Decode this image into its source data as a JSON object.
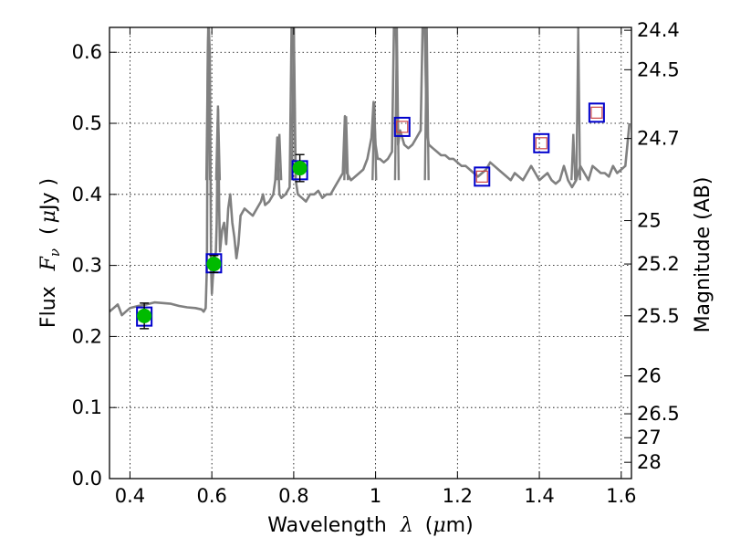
{
  "chart_data": {
    "type": "line",
    "xlabel": {
      "prefix": "Wavelength",
      "symbol": "λ",
      "unit_open": "(",
      "unit_mu": "μ",
      "unit_rest": "m)"
    },
    "ylabel": {
      "prefix": "Flux",
      "symbol": "F",
      "subscript": "ν",
      "unit_open": "(",
      "unit_mu": "μ",
      "unit_rest": "Jy )"
    },
    "y2label": "Magnitude (AB)",
    "xlim": [
      0.35,
      1.625
    ],
    "ylim": [
      0.0,
      0.635
    ],
    "x_ticks": [
      0.4,
      0.6,
      0.8,
      1.0,
      1.2,
      1.4,
      1.6
    ],
    "x_tick_labels": [
      "0.4",
      "0.6",
      "0.8",
      "1",
      "1.2",
      "1.4",
      "1.6"
    ],
    "y_ticks": [
      0.0,
      0.1,
      0.2,
      0.3,
      0.4,
      0.5,
      0.6
    ],
    "y_tick_labels": [
      "0.0",
      "0.1",
      "0.2",
      "0.3",
      "0.4",
      "0.5",
      "0.6"
    ],
    "y2_ticks_mag": [
      24.4,
      24.5,
      24.7,
      25,
      25.2,
      25.5,
      26,
      26.5,
      27,
      28
    ],
    "y2_tick_labels": [
      "24.4",
      "24.5",
      "24.7",
      "25",
      "25.2",
      "25.5",
      "26",
      "26.5",
      "27",
      "28"
    ],
    "grid": true,
    "colors": {
      "spectrum": "#808080",
      "model_box": "#0000cc",
      "observed": "#00bb00",
      "upper_limit": "#cc4444",
      "errorbar": "#000000"
    },
    "spectrum": {
      "x": [
        0.35,
        0.36,
        0.37,
        0.375,
        0.38,
        0.39,
        0.4,
        0.42,
        0.44,
        0.46,
        0.48,
        0.5,
        0.52,
        0.54,
        0.56,
        0.575,
        0.58,
        0.585,
        0.588,
        0.59,
        0.592,
        0.595,
        0.598,
        0.6,
        0.602,
        0.605,
        0.61,
        0.612,
        0.615,
        0.618,
        0.62,
        0.625,
        0.63,
        0.635,
        0.64,
        0.645,
        0.65,
        0.655,
        0.66,
        0.665,
        0.67,
        0.68,
        0.69,
        0.7,
        0.71,
        0.72,
        0.725,
        0.73,
        0.74,
        0.75,
        0.755,
        0.76,
        0.765,
        0.77,
        0.78,
        0.79,
        0.795,
        0.8,
        0.805,
        0.81,
        0.82,
        0.83,
        0.84,
        0.85,
        0.86,
        0.87,
        0.88,
        0.89,
        0.9,
        0.91,
        0.92,
        0.925,
        0.93,
        0.94,
        0.95,
        0.96,
        0.97,
        0.98,
        0.99,
        0.995,
        1.0,
        1.005,
        1.01,
        1.02,
        1.03,
        1.04,
        1.045,
        1.05,
        1.055,
        1.06,
        1.07,
        1.08,
        1.09,
        1.1,
        1.11,
        1.115,
        1.12,
        1.125,
        1.13,
        1.14,
        1.15,
        1.16,
        1.17,
        1.18,
        1.19,
        1.2,
        1.21,
        1.22,
        1.23,
        1.24,
        1.25,
        1.26,
        1.27,
        1.28,
        1.29,
        1.3,
        1.31,
        1.32,
        1.33,
        1.34,
        1.35,
        1.36,
        1.37,
        1.38,
        1.39,
        1.4,
        1.41,
        1.42,
        1.43,
        1.44,
        1.45,
        1.46,
        1.47,
        1.48,
        1.49,
        1.5,
        1.51,
        1.52,
        1.53,
        1.54,
        1.55,
        1.56,
        1.57,
        1.58,
        1.59,
        1.6,
        1.61,
        1.62
      ],
      "y": [
        0.235,
        0.24,
        0.245,
        0.238,
        0.23,
        0.235,
        0.24,
        0.243,
        0.245,
        0.248,
        0.247,
        0.246,
        0.243,
        0.241,
        0.24,
        0.238,
        0.235,
        0.24,
        0.3,
        0.6,
        0.64,
        0.6,
        0.3,
        0.26,
        0.28,
        0.3,
        0.32,
        0.36,
        0.52,
        0.38,
        0.32,
        0.35,
        0.36,
        0.33,
        0.38,
        0.4,
        0.36,
        0.34,
        0.31,
        0.33,
        0.37,
        0.38,
        0.375,
        0.37,
        0.38,
        0.39,
        0.4,
        0.385,
        0.39,
        0.4,
        0.42,
        0.48,
        0.4,
        0.395,
        0.4,
        0.41,
        0.64,
        0.64,
        0.42,
        0.4,
        0.395,
        0.39,
        0.4,
        0.4,
        0.405,
        0.395,
        0.4,
        0.4,
        0.41,
        0.42,
        0.43,
        0.51,
        0.43,
        0.42,
        0.425,
        0.43,
        0.435,
        0.45,
        0.48,
        0.53,
        0.47,
        0.45,
        0.45,
        0.445,
        0.45,
        0.46,
        0.64,
        0.64,
        0.47,
        0.49,
        0.47,
        0.465,
        0.47,
        0.48,
        0.49,
        0.64,
        0.64,
        0.49,
        0.47,
        0.465,
        0.46,
        0.455,
        0.455,
        0.45,
        0.45,
        0.445,
        0.44,
        0.44,
        0.435,
        0.43,
        0.425,
        0.43,
        0.435,
        0.445,
        0.44,
        0.435,
        0.43,
        0.425,
        0.42,
        0.43,
        0.425,
        0.42,
        0.43,
        0.44,
        0.43,
        0.42,
        0.425,
        0.43,
        0.42,
        0.415,
        0.42,
        0.44,
        0.42,
        0.41,
        0.42,
        0.44,
        0.43,
        0.42,
        0.44,
        0.435,
        0.43,
        0.43,
        0.425,
        0.44,
        0.43,
        0.435,
        0.44,
        0.5
      ]
    },
    "spectrum_spikes": [
      {
        "x": 0.591,
        "y": 0.64
      },
      {
        "x": 0.615,
        "y": 0.525
      },
      {
        "x": 0.765,
        "y": 0.485
      },
      {
        "x": 0.8,
        "y": 0.64
      },
      {
        "x": 0.928,
        "y": 0.51
      },
      {
        "x": 0.997,
        "y": 0.53
      },
      {
        "x": 1.052,
        "y": 0.64
      },
      {
        "x": 1.125,
        "y": 0.64
      },
      {
        "x": 1.483,
        "y": 0.485
      },
      {
        "x": 1.495,
        "y": 0.64
      }
    ],
    "model_boxes": {
      "x": [
        0.435,
        0.605,
        0.815,
        1.065,
        1.26,
        1.405,
        1.54
      ],
      "y": [
        0.228,
        0.303,
        0.434,
        0.495,
        0.425,
        0.472,
        0.515
      ]
    },
    "observed": {
      "x": [
        0.435,
        0.605,
        0.815
      ],
      "y": [
        0.229,
        0.302,
        0.437
      ],
      "yerr": [
        0.018,
        0.012,
        0.019
      ]
    },
    "upper_limits": {
      "x": [
        1.065,
        1.26,
        1.405,
        1.54
      ],
      "y": [
        0.495,
        0.425,
        0.472,
        0.515
      ]
    }
  }
}
